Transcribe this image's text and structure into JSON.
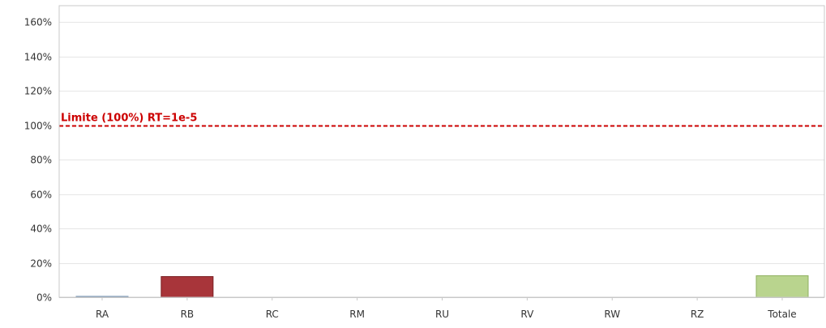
{
  "chart_data": {
    "type": "bar",
    "title": "",
    "xlabel": "",
    "ylabel": "",
    "categories": [
      "RA",
      "RB",
      "RC",
      "RM",
      "RU",
      "RV",
      "RW",
      "RZ",
      "Totale"
    ],
    "values": [
      0.5,
      12,
      0,
      0,
      0,
      0,
      0,
      0,
      12.5
    ],
    "unit": "%",
    "ylim": [
      0,
      160
    ],
    "yticks": [
      0,
      20,
      40,
      60,
      80,
      100,
      120,
      140,
      160
    ],
    "ytick_labels": [
      "0%",
      "20%",
      "40%",
      "60%",
      "80%",
      "100%",
      "120%",
      "140%",
      "160%"
    ],
    "grid": true,
    "bar_colors": [
      "#a8c4e0",
      "#a8353a",
      "#cccccc",
      "#cccccc",
      "#cccccc",
      "#cccccc",
      "#cccccc",
      "#cccccc",
      "#b9d48e"
    ],
    "bar_edge_colors": [
      "#7090b0",
      "#7a1f22",
      "#aaaaaa",
      "#aaaaaa",
      "#aaaaaa",
      "#aaaaaa",
      "#aaaaaa",
      "#aaaaaa",
      "#8fb060"
    ],
    "reference_line": {
      "value": 100,
      "label": "Limite (100%) RT=1e-5",
      "color": "#cc0000",
      "style": "dashed"
    }
  }
}
